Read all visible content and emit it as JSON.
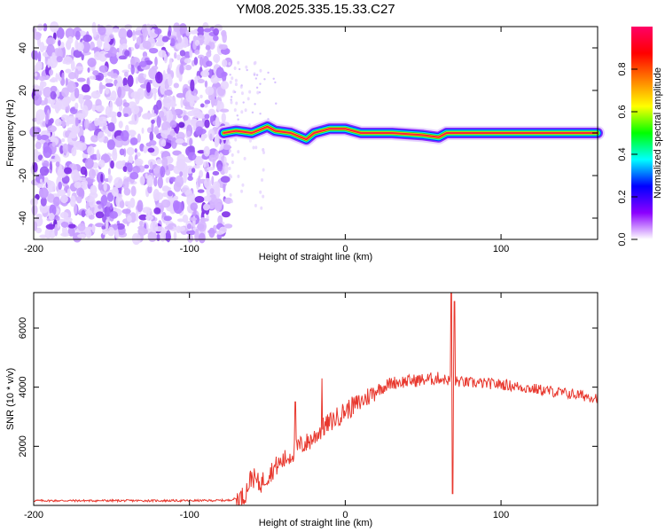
{
  "title": "YM08.2025.335.15.33.C27",
  "chart_data": [
    {
      "type": "heatmap",
      "name": "spectrogram",
      "xlabel": "Height of straight line (km)",
      "ylabel": "Frequency (Hz)",
      "xlim": [
        -200,
        162
      ],
      "ylim": [
        -50,
        50
      ],
      "xticks": [
        -200,
        -100,
        0,
        100
      ],
      "xtick_labels": [
        "-200",
        "-100",
        "0",
        "100"
      ],
      "yticks": [
        -40,
        -20,
        0,
        20,
        40
      ],
      "ytick_labels": [
        "-40",
        "-20",
        "0",
        "20",
        "40"
      ],
      "noise_region_km": [
        -200,
        -75
      ],
      "signal_track": [
        {
          "x": -78,
          "f": 0
        },
        {
          "x": -70,
          "f": 1
        },
        {
          "x": -60,
          "f": 0
        },
        {
          "x": -50,
          "f": 3
        },
        {
          "x": -45,
          "f": 1
        },
        {
          "x": -35,
          "f": 0
        },
        {
          "x": -25,
          "f": -3
        },
        {
          "x": -20,
          "f": 0
        },
        {
          "x": -10,
          "f": 2
        },
        {
          "x": 0,
          "f": 2
        },
        {
          "x": 10,
          "f": 0
        },
        {
          "x": 30,
          "f": 0
        },
        {
          "x": 50,
          "f": -1
        },
        {
          "x": 60,
          "f": -2
        },
        {
          "x": 65,
          "f": 0
        },
        {
          "x": 90,
          "f": 0
        },
        {
          "x": 162,
          "f": 0
        }
      ],
      "colorbar": {
        "label": "Normalized spectral amplitude",
        "range": [
          0,
          1
        ],
        "ticks": [
          0.0,
          0.2,
          0.4,
          0.6,
          0.8
        ],
        "tick_labels": [
          "0.0",
          "0.2",
          "0.4",
          "0.6",
          "0.8"
        ],
        "colors": [
          "#ffffff",
          "#8b00ff",
          "#0000ff",
          "#00ffff",
          "#00ff00",
          "#ffff00",
          "#ff7f00",
          "#ff0000",
          "#ff0066"
        ]
      }
    },
    {
      "type": "line",
      "name": "snr",
      "xlabel": "Height of straight line (km)",
      "ylabel": "SNR (10 * v/v)",
      "xlim": [
        -200,
        162
      ],
      "ylim": [
        0,
        7200
      ],
      "xticks": [
        -200,
        -100,
        0,
        100
      ],
      "xtick_labels": [
        "-200",
        "-100",
        "0",
        "100"
      ],
      "yticks": [
        2000,
        4000,
        6000
      ],
      "ytick_labels": [
        "2000",
        "4000",
        "6000"
      ],
      "color": "#e8382e",
      "series": [
        {
          "name": "SNR",
          "points": [
            {
              "x": -200,
              "y": 160
            },
            {
              "x": -150,
              "y": 160
            },
            {
              "x": -100,
              "y": 160
            },
            {
              "x": -75,
              "y": 170
            },
            {
              "x": -65,
              "y": 300
            },
            {
              "x": -60,
              "y": 1000
            },
            {
              "x": -55,
              "y": 700
            },
            {
              "x": -50,
              "y": 1000
            },
            {
              "x": -45,
              "y": 1300
            },
            {
              "x": -40,
              "y": 1500
            },
            {
              "x": -35,
              "y": 1700
            },
            {
              "x": -30,
              "y": 2000
            },
            {
              "x": -25,
              "y": 2100
            },
            {
              "x": -20,
              "y": 2300
            },
            {
              "x": -15,
              "y": 2600
            },
            {
              "x": -10,
              "y": 2800
            },
            {
              "x": -5,
              "y": 3000
            },
            {
              "x": 0,
              "y": 3200
            },
            {
              "x": 10,
              "y": 3500
            },
            {
              "x": 20,
              "y": 3900
            },
            {
              "x": 30,
              "y": 4150
            },
            {
              "x": 40,
              "y": 4200
            },
            {
              "x": 50,
              "y": 4250
            },
            {
              "x": 60,
              "y": 4300
            },
            {
              "x": 70,
              "y": 4200
            },
            {
              "x": 80,
              "y": 4150
            },
            {
              "x": 100,
              "y": 4100
            },
            {
              "x": 120,
              "y": 3950
            },
            {
              "x": 140,
              "y": 3800
            },
            {
              "x": 162,
              "y": 3650
            }
          ]
        }
      ],
      "spikes": [
        {
          "x": -32,
          "y": 3500
        },
        {
          "x": -15,
          "y": 4300
        },
        {
          "x": 68,
          "y": 7200
        },
        {
          "x": 69,
          "y": 400
        },
        {
          "x": 70,
          "y": 6900
        }
      ]
    }
  ]
}
